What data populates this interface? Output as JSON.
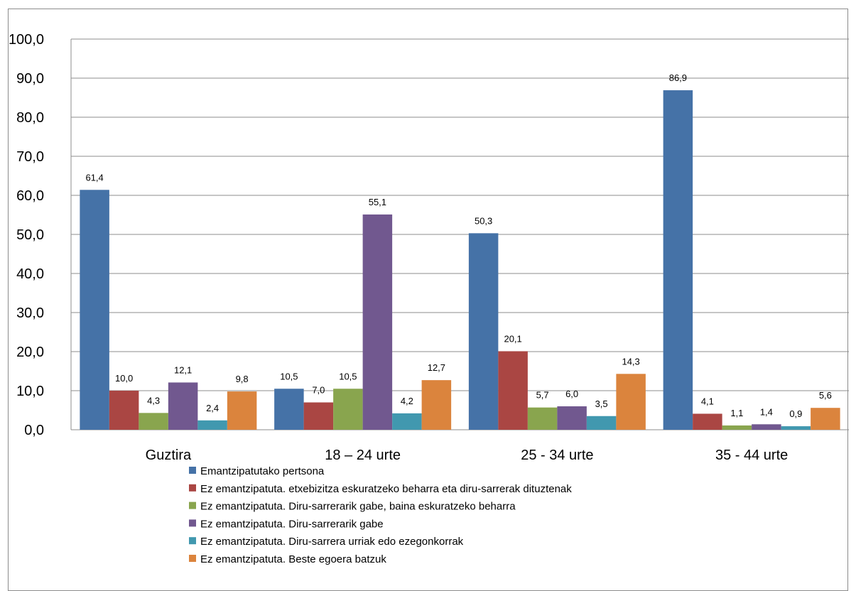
{
  "chart_data": {
    "type": "bar",
    "categories": [
      "Guztira",
      "18 – 24 urte",
      "25 - 34 urte",
      "35 - 44 urte"
    ],
    "series": [
      {
        "name": "Emantzipatutako pertsona",
        "color": "#4572A7",
        "values": [
          61.4,
          10.5,
          50.3,
          86.9
        ],
        "labels": [
          "61,4",
          "10,5",
          "50,3",
          "86,9"
        ]
      },
      {
        "name": "Ez emantzipatuta. etxebizitza eskuratzeko beharra eta diru-sarrerak dituztenak",
        "color": "#AA4643",
        "values": [
          10.0,
          7.0,
          20.1,
          4.1
        ],
        "labels": [
          "10,0",
          "7,0",
          "20,1",
          "4,1"
        ]
      },
      {
        "name": "Ez emantzipatuta. Diru-sarrerarik gabe, baina eskuratzeko beharra",
        "color": "#89A54E",
        "values": [
          4.3,
          10.5,
          5.7,
          1.1
        ],
        "labels": [
          "4,3",
          "10,5",
          "5,7",
          "1,1"
        ]
      },
      {
        "name": "Ez emantzipatuta. Diru-sarrerarik gabe",
        "color": "#71588F",
        "values": [
          12.1,
          55.1,
          6.0,
          1.4
        ],
        "labels": [
          "12,1",
          "55,1",
          "6,0",
          "1,4"
        ]
      },
      {
        "name": "Ez emantzipatuta. Diru-sarrera urriak edo ezegonkorrak",
        "color": "#4198AF",
        "values": [
          2.4,
          4.2,
          3.5,
          0.9
        ],
        "labels": [
          "2,4",
          "4,2",
          "3,5",
          "0,9"
        ]
      },
      {
        "name": "Ez emantzipatuta. Beste egoera batzuk",
        "color": "#DB843D",
        "values": [
          9.8,
          12.7,
          14.3,
          5.6
        ],
        "labels": [
          "9,8",
          "12,7",
          "14,3",
          "5,6"
        ]
      }
    ],
    "ylim": [
      0,
      100
    ],
    "yticks": [
      0,
      10,
      20,
      30,
      40,
      50,
      60,
      70,
      80,
      90,
      100
    ],
    "ytick_labels": [
      "0,0",
      "10,0",
      "20,0",
      "30,0",
      "40,0",
      "50,0",
      "60,0",
      "70,0",
      "80,0",
      "90,0",
      "100,0"
    ],
    "grid": true,
    "legend_position": "bottom"
  }
}
